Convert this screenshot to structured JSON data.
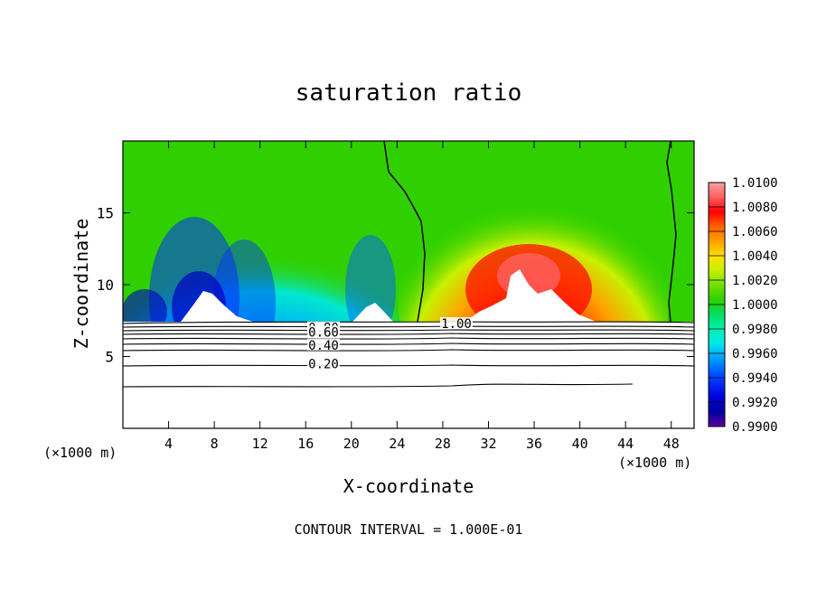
{
  "chart_data": {
    "type": "heatmap",
    "title": "saturation ratio",
    "xlabel": "X-coordinate",
    "ylabel": "Z-coordinate",
    "x_unit": "(×1000 m)",
    "y_unit": "(×1000 m)",
    "xlim": [
      0,
      50
    ],
    "ylim": [
      0,
      20
    ],
    "xticks": [
      4,
      8,
      12,
      16,
      20,
      24,
      28,
      32,
      36,
      40,
      44,
      48
    ],
    "yticks": [
      5,
      10,
      15
    ],
    "colorbar": {
      "levels": [
        "1.0100",
        "1.0080",
        "1.0060",
        "1.0040",
        "1.0020",
        "1.0000",
        "0.9980",
        "0.9960",
        "0.9940",
        "0.9920",
        "0.9900"
      ],
      "colors": [
        "#f8a0a0",
        "#ff6060",
        "#ff0000",
        "#ff6000",
        "#ffa000",
        "#ffe000",
        "#c8f000",
        "#70e000",
        "#30d000",
        "#00e060",
        "#00f0b0",
        "#00e8e8",
        "#00a0ff",
        "#0040ff",
        "#0000e0",
        "#0000a0",
        "#6000a0"
      ]
    },
    "contours": [
      {
        "label": "1.00",
        "z": 7.3
      },
      {
        "label": "0.80",
        "z": 7.0
      },
      {
        "label": "0.60",
        "z": 6.7
      },
      {
        "label": "0.40",
        "z": 5.8
      },
      {
        "label": "0.20",
        "z": 4.5
      }
    ],
    "footer": "CONTOUR INTERVAL = 1.000E-01"
  }
}
